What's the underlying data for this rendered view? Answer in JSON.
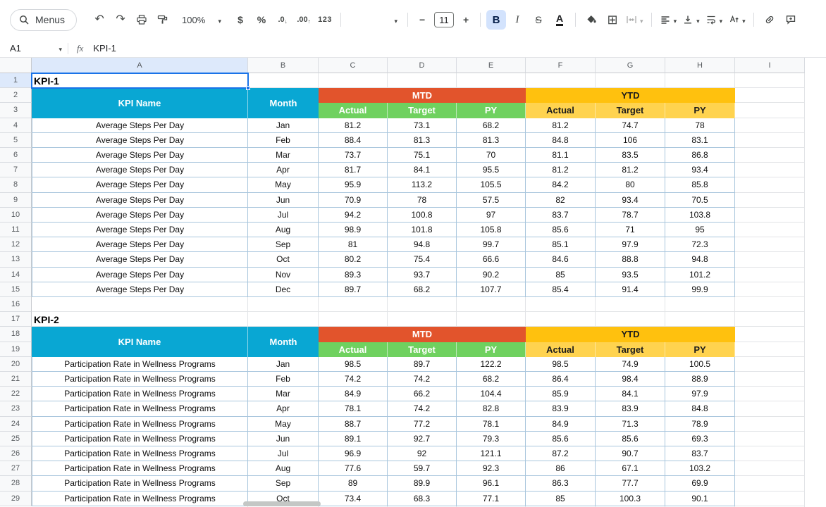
{
  "toolbar": {
    "menus_label": "Menus",
    "zoom": "100%",
    "currency": "$",
    "percent": "%",
    "decrease_decimal": ".0",
    "increase_decimal": ".00",
    "more_formats": "123",
    "font_size": "11",
    "decrease_font": "−",
    "increase_font": "+",
    "bold": "B",
    "italic": "I",
    "strikethrough": "S",
    "text_color": "A"
  },
  "formula_bar": {
    "name_box": "A1",
    "fx_label": "fx",
    "value": "KPI-1"
  },
  "grid": {
    "col_headers": [
      "A",
      "B",
      "C",
      "D",
      "E",
      "F",
      "G",
      "H",
      "I"
    ],
    "row_count": 29,
    "selected_cell": "A1"
  },
  "table_header": {
    "kpi_name": "KPI Name",
    "month": "Month",
    "mtd": "MTD",
    "ytd": "YTD",
    "sub_headers": [
      "Actual",
      "Target",
      "PY"
    ]
  },
  "sections": [
    {
      "title": "KPI-1",
      "title_row": 1,
      "header_rows": [
        2,
        3
      ],
      "data_start_row": 4,
      "kpi": "Average Steps Per Day",
      "rows": [
        {
          "month": "Jan",
          "mtd": [
            81.2,
            73.1,
            68.2
          ],
          "ytd": [
            81.2,
            74.7,
            78
          ]
        },
        {
          "month": "Feb",
          "mtd": [
            88.4,
            81.3,
            81.3
          ],
          "ytd": [
            84.8,
            106,
            83.1
          ]
        },
        {
          "month": "Mar",
          "mtd": [
            73.7,
            75.1,
            70
          ],
          "ytd": [
            81.1,
            83.5,
            86.8
          ]
        },
        {
          "month": "Apr",
          "mtd": [
            81.7,
            84.1,
            95.5
          ],
          "ytd": [
            81.2,
            81.2,
            93.4
          ]
        },
        {
          "month": "May",
          "mtd": [
            95.9,
            113.2,
            105.5
          ],
          "ytd": [
            84.2,
            80,
            85.8
          ]
        },
        {
          "month": "Jun",
          "mtd": [
            70.9,
            78,
            57.5
          ],
          "ytd": [
            82,
            93.4,
            70.5
          ]
        },
        {
          "month": "Jul",
          "mtd": [
            94.2,
            100.8,
            97
          ],
          "ytd": [
            83.7,
            78.7,
            103.8
          ]
        },
        {
          "month": "Aug",
          "mtd": [
            98.9,
            101.8,
            105.8
          ],
          "ytd": [
            85.6,
            71,
            95
          ]
        },
        {
          "month": "Sep",
          "mtd": [
            81,
            94.8,
            99.7
          ],
          "ytd": [
            85.1,
            97.9,
            72.3
          ]
        },
        {
          "month": "Oct",
          "mtd": [
            80.2,
            75.4,
            66.6
          ],
          "ytd": [
            84.6,
            88.8,
            94.8
          ]
        },
        {
          "month": "Nov",
          "mtd": [
            89.3,
            93.7,
            90.2
          ],
          "ytd": [
            85,
            93.5,
            101.2
          ]
        },
        {
          "month": "Dec",
          "mtd": [
            89.7,
            68.2,
            107.7
          ],
          "ytd": [
            85.4,
            91.4,
            99.9
          ]
        }
      ]
    },
    {
      "title": "KPI-2",
      "title_row": 17,
      "header_rows": [
        18,
        19
      ],
      "data_start_row": 20,
      "kpi": "Participation Rate in Wellness Programs",
      "rows": [
        {
          "month": "Jan",
          "mtd": [
            98.5,
            89.7,
            122.2
          ],
          "ytd": [
            98.5,
            74.9,
            100.5
          ]
        },
        {
          "month": "Feb",
          "mtd": [
            74.2,
            74.2,
            68.2
          ],
          "ytd": [
            86.4,
            98.4,
            88.9
          ]
        },
        {
          "month": "Mar",
          "mtd": [
            84.9,
            66.2,
            104.4
          ],
          "ytd": [
            85.9,
            84.1,
            97.9
          ]
        },
        {
          "month": "Apr",
          "mtd": [
            78.1,
            74.2,
            82.8
          ],
          "ytd": [
            83.9,
            83.9,
            84.8
          ]
        },
        {
          "month": "May",
          "mtd": [
            88.7,
            77.2,
            78.1
          ],
          "ytd": [
            84.9,
            71.3,
            78.9
          ]
        },
        {
          "month": "Jun",
          "mtd": [
            89.1,
            92.7,
            79.3
          ],
          "ytd": [
            85.6,
            85.6,
            69.3
          ]
        },
        {
          "month": "Jul",
          "mtd": [
            96.9,
            92,
            121.1
          ],
          "ytd": [
            87.2,
            90.7,
            83.7
          ]
        },
        {
          "month": "Aug",
          "mtd": [
            77.6,
            59.7,
            92.3
          ],
          "ytd": [
            86,
            67.1,
            103.2
          ]
        },
        {
          "month": "Sep",
          "mtd": [
            89,
            89.9,
            96.1
          ],
          "ytd": [
            86.3,
            77.7,
            69.9
          ]
        },
        {
          "month": "Oct",
          "mtd": [
            73.4,
            68.3,
            77.1
          ],
          "ytd": [
            85,
            100.3,
            90.1
          ]
        }
      ]
    }
  ],
  "colors": {
    "header_cyan": "#09a7d3",
    "mtd": "#e2542c",
    "mtd_sub": "#6fd15f",
    "ytd": "#ffc10e",
    "ytd_sub": "#ffd34f",
    "table_border": "#a9c6dd",
    "selection": "#1a73e8",
    "bold_active_bg": "#d3e3fd",
    "header_highlight": "#dde9fb"
  }
}
